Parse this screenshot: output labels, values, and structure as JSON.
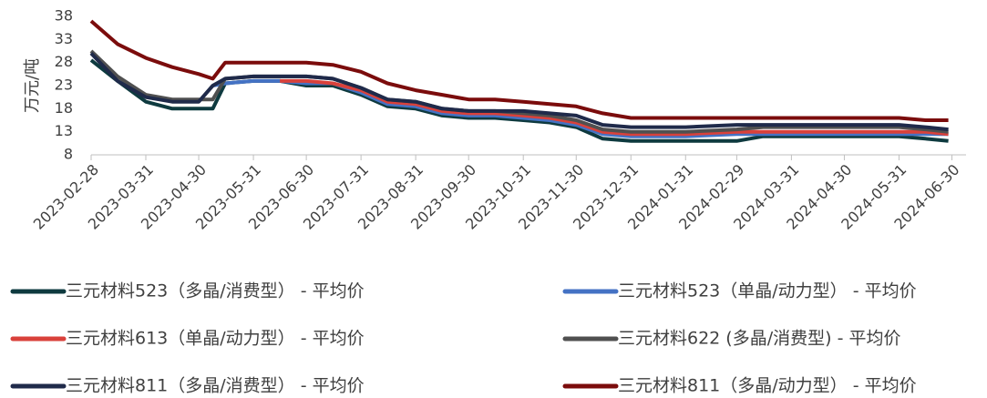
{
  "chart_data": {
    "type": "line",
    "y_label": "万元/吨",
    "x": [
      "2023-02-28",
      "2023-03-15",
      "2023-03-31",
      "2023-04-15",
      "2023-04-30",
      "2023-05-08",
      "2023-05-15",
      "2023-05-31",
      "2023-06-15",
      "2023-06-30",
      "2023-07-15",
      "2023-07-31",
      "2023-08-15",
      "2023-08-31",
      "2023-09-15",
      "2023-09-30",
      "2023-10-15",
      "2023-10-31",
      "2023-11-15",
      "2023-11-30",
      "2023-12-15",
      "2023-12-31",
      "2024-01-31",
      "2024-02-29",
      "2024-03-15",
      "2024-03-31",
      "2024-04-30",
      "2024-05-31",
      "2024-06-15",
      "2024-06-28"
    ],
    "series": [
      {
        "name": "三元材料523（多晶/消费型） - 平均价",
        "color": "#0e3a3f",
        "values": [
          28.5,
          24,
          19.5,
          18,
          18,
          18,
          23.5,
          24,
          24,
          23,
          23,
          21,
          18.5,
          18,
          16.5,
          16,
          16,
          15.5,
          15,
          14,
          11.5,
          11,
          11,
          11,
          12,
          12,
          12,
          12,
          11.5,
          11
        ]
      },
      {
        "name": "三元材料523（单晶/动力型） - 平均价",
        "color": "#4472c4",
        "values": [
          null,
          null,
          null,
          null,
          null,
          23,
          23.5,
          24,
          24,
          23.5,
          23.5,
          21.5,
          19,
          18.5,
          17,
          16.5,
          16.5,
          16,
          15.5,
          14.5,
          12.5,
          12,
          12,
          12.5,
          12.5,
          12.5,
          12.5,
          12.5,
          12.5,
          12.5
        ]
      },
      {
        "name": "三元材料613（单晶/动力型） - 平均价",
        "color": "#d9413b",
        "values": [
          null,
          null,
          null,
          null,
          null,
          null,
          null,
          null,
          24,
          24,
          23.5,
          22,
          19.5,
          19,
          17.5,
          17,
          17,
          16.5,
          16,
          15,
          13,
          12.5,
          12.5,
          13,
          13,
          13,
          13,
          13,
          13,
          12.5
        ]
      },
      {
        "name": "三元材料622 (多晶/消费型) - 平均价",
        "color": "#505050",
        "values": [
          30.5,
          25,
          21,
          20,
          20,
          20,
          24.5,
          25,
          25,
          25,
          24.5,
          22.5,
          20,
          19.5,
          18,
          17.5,
          17.5,
          17,
          16.5,
          15.5,
          13.5,
          13,
          13,
          13.5,
          14,
          14,
          14,
          14,
          13.5,
          13
        ]
      },
      {
        "name": "三元材料811（多晶/消费型） - 平均价",
        "color": "#1f2a4a",
        "values": [
          30,
          24,
          20.5,
          19.5,
          19.5,
          23,
          24.5,
          25,
          25,
          25,
          24.5,
          22.5,
          20,
          19.5,
          18,
          17.5,
          17.5,
          17.5,
          17,
          16.5,
          14.5,
          14,
          14,
          14.5,
          14.5,
          14.5,
          14.5,
          14.5,
          14,
          13.5
        ]
      },
      {
        "name": "三元材料811（多晶/动力型） - 平均价",
        "color": "#7b0c0c",
        "values": [
          37,
          32,
          29,
          27,
          25.5,
          24.5,
          28,
          28,
          28,
          28,
          27.5,
          26,
          23.5,
          22,
          21,
          20,
          20,
          19.5,
          19,
          18.5,
          17,
          16,
          16,
          16,
          16,
          16,
          16,
          16,
          15.5,
          15.5
        ]
      }
    ],
    "xlim": [
      "2023-02-28",
      "2024-07-08"
    ],
    "xticks": [
      "2023-02-28",
      "2023-03-31",
      "2023-04-30",
      "2023-05-31",
      "2023-06-30",
      "2023-07-31",
      "2023-08-31",
      "2023-09-30",
      "2023-10-31",
      "2023-11-30",
      "2023-12-31",
      "2024-01-31",
      "2024-02-29",
      "2024-03-31",
      "2024-04-30",
      "2024-05-31",
      "2024-06-30"
    ],
    "ylim": [
      8,
      38
    ],
    "yticks": [
      8,
      13,
      18,
      23,
      28,
      33,
      38
    ],
    "grid": false,
    "legend": "bottom"
  }
}
